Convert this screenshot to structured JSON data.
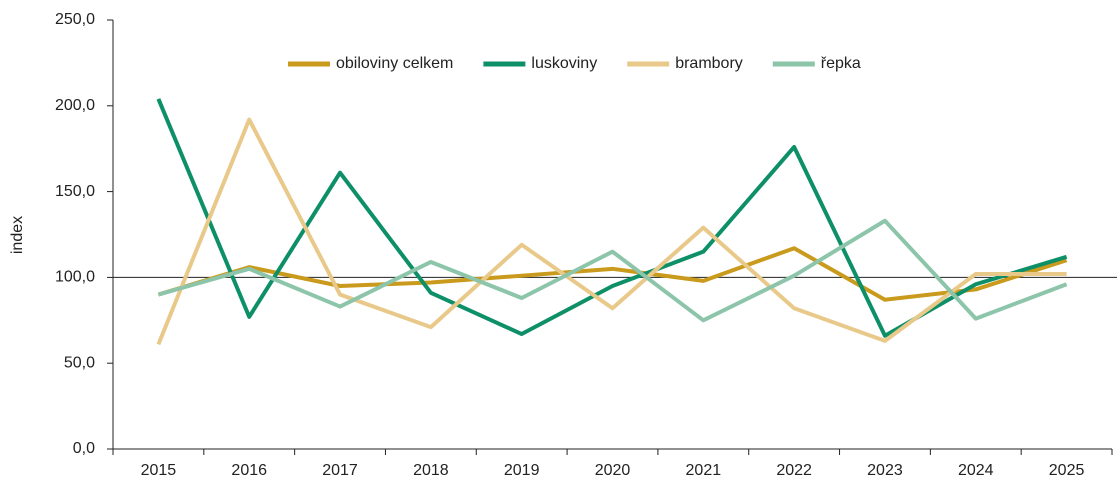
{
  "chart_data": {
    "type": "line",
    "y_label": "index",
    "categories": [
      "2015",
      "2016",
      "2017",
      "2018",
      "2019",
      "2020",
      "2021",
      "2022",
      "2023",
      "2024",
      "2025"
    ],
    "series": [
      {
        "name": "obiloviny celkem",
        "color": "#c99a1c",
        "values": [
          90,
          106,
          95,
          97,
          101,
          105,
          98,
          117,
          87,
          93,
          110
        ]
      },
      {
        "name": "luskoviny",
        "color": "#0d8f68",
        "values": [
          204,
          77,
          161,
          91,
          67,
          95,
          115,
          176,
          66,
          96,
          112
        ]
      },
      {
        "name": "brambory",
        "color": "#e9c98a",
        "values": [
          61,
          192,
          90,
          71,
          119,
          82,
          129,
          82,
          63,
          102,
          102
        ]
      },
      {
        "name": "řepka",
        "color": "#8cc5aa",
        "values": [
          90,
          105,
          83,
          109,
          88,
          115,
          75,
          101,
          133,
          76,
          96
        ]
      }
    ],
    "ylim": [
      0,
      250
    ],
    "yticks": [
      {
        "value": 0,
        "label": "0,0"
      },
      {
        "value": 50,
        "label": "50,0"
      },
      {
        "value": 100,
        "label": "100,0"
      },
      {
        "value": 150,
        "label": "150,0"
      },
      {
        "value": 200,
        "label": "200,0"
      },
      {
        "value": 250,
        "label": "250,0"
      }
    ],
    "x_axis_crosses": 100,
    "legend": "top"
  }
}
